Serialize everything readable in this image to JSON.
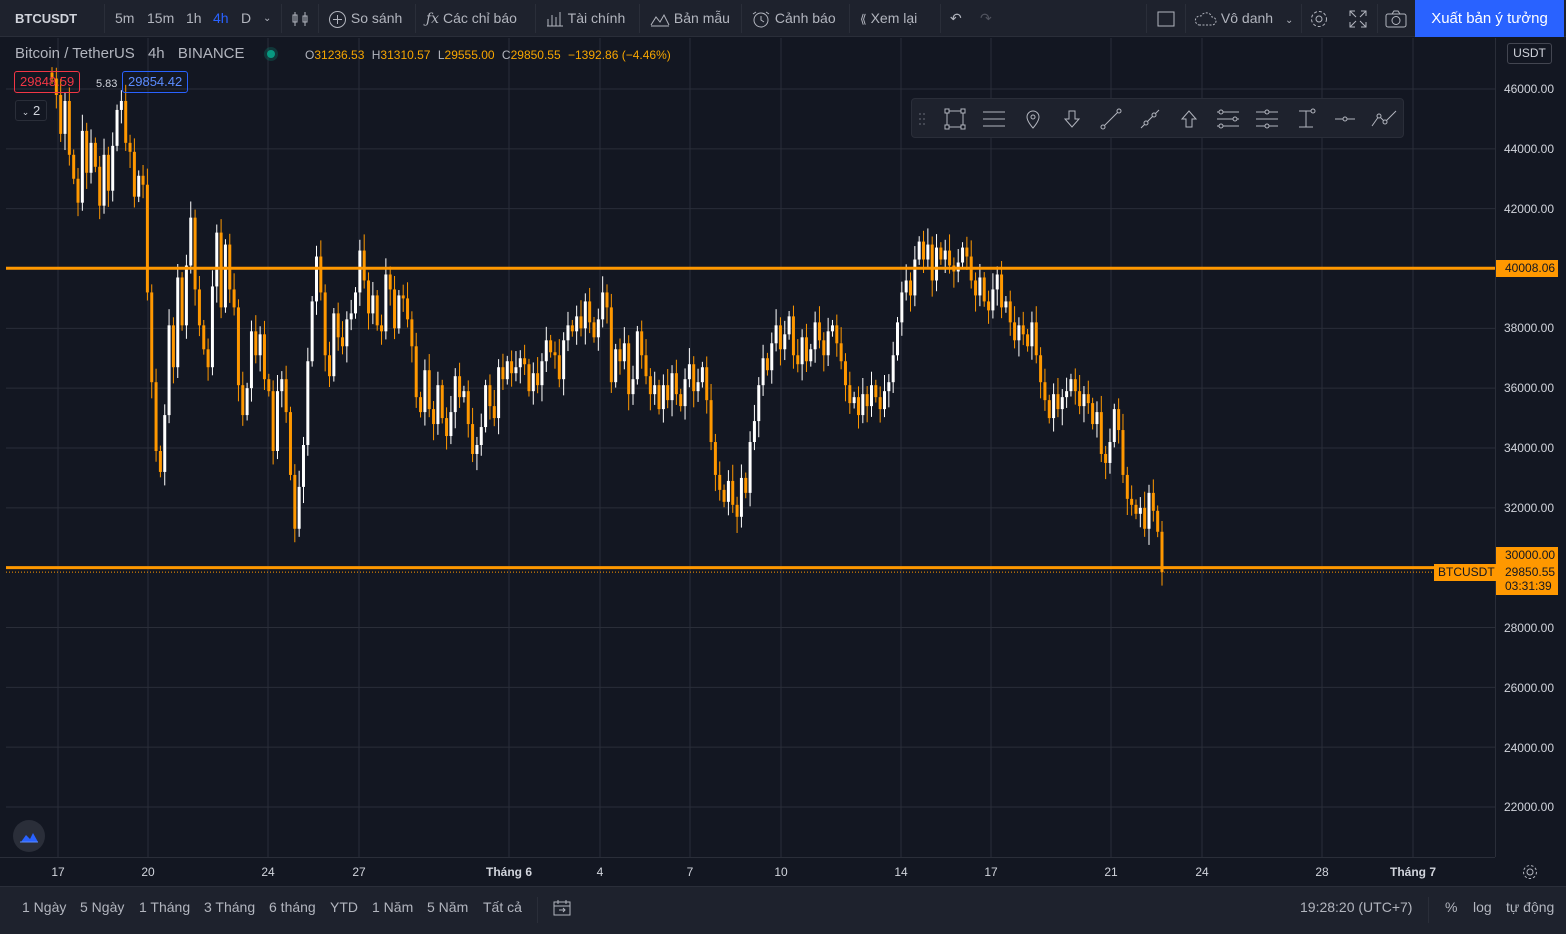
{
  "toolbar": {
    "symbol": "BTCUSDT",
    "intervals": [
      "5m",
      "15m",
      "1h",
      "4h",
      "D"
    ],
    "active_interval": "4h",
    "compare": "So sánh",
    "indicators": "Các chỉ báo",
    "financials": "Tài chính",
    "templates": "Bản mẫu",
    "alert": "Cảnh báo",
    "replay": "Xem lại",
    "layout_name": "Vô danh",
    "publish": "Xuất bản ý tưởng"
  },
  "legend": {
    "name": "Bitcoin / TetherUS",
    "interval": "4h",
    "exchange": "BINANCE",
    "o_label": "O",
    "o": "31236.53",
    "h_label": "H",
    "h": "31310.57",
    "l_label": "L",
    "l": "29555.00",
    "c_label": "C",
    "c": "29850.55",
    "change": "−1392.86 (−4.46%)",
    "sell_price": "29848.59",
    "spread": "5.83",
    "buy_price": "29854.42",
    "collapsed_count": "2"
  },
  "price_axis": {
    "currency": "USDT",
    "labels": [
      "46000.00",
      "44000.00",
      "42000.00",
      "38000.00",
      "36000.00",
      "34000.00",
      "32000.00",
      "28000.00",
      "26000.00",
      "24000.00",
      "22000.00"
    ],
    "resistance_tag": "40008.06",
    "support_tag": "30000.00",
    "current_price": "29850.55",
    "countdown": "03:31:39",
    "symbol_tag": "BTCUSDT"
  },
  "time_axis": {
    "labels": [
      "17",
      "20",
      "24",
      "27",
      "Tháng 6",
      "4",
      "7",
      "10",
      "14",
      "17",
      "21",
      "24",
      "28",
      "Tháng 7"
    ]
  },
  "bottom": {
    "ranges": [
      "1 Ngày",
      "5 Ngày",
      "1 Tháng",
      "3 Tháng",
      "6 tháng",
      "YTD",
      "1 Năm",
      "5 Năm",
      "Tất cả"
    ],
    "clock": "19:28:20 (UTC+7)",
    "percent": "%",
    "log": "log",
    "auto": "tự động"
  },
  "chart_data": {
    "type": "candlestick",
    "color": "#ff9800",
    "hover_color": "#ffffff",
    "y_range": [
      20500,
      47500
    ],
    "horizontal_lines": [
      40008.06,
      30000.0
    ],
    "closes": [
      46350,
      45800,
      44500,
      45600,
      43800,
      43000,
      42200,
      44600,
      43200,
      44200,
      43400,
      42100,
      43800,
      42600,
      44100,
      45300,
      45600,
      44200,
      43900,
      42400,
      43100,
      42800,
      39200,
      36200,
      33900,
      33200,
      35100,
      38100,
      36700,
      39700,
      38100,
      40100,
      41700,
      39300,
      38100,
      37300,
      36700,
      39400,
      41200,
      38700,
      40800,
      39300,
      38700,
      36100,
      35100,
      36000,
      37900,
      37100,
      37800,
      36300,
      35900,
      33900,
      35900,
      36300,
      35200,
      33100,
      31300,
      32700,
      34100,
      36900,
      38900,
      40400,
      39200,
      37100,
      36400,
      38500,
      37700,
      37400,
      38300,
      38500,
      39200,
      40600,
      39600,
      38500,
      39100,
      38100,
      37900,
      39800,
      39300,
      38000,
      39100,
      39000,
      38300,
      37400,
      35700,
      35200,
      36600,
      35300,
      34800,
      36100,
      35000,
      34400,
      35200,
      36400,
      35700,
      35900,
      34800,
      33800,
      34100,
      34700,
      36100,
      35400,
      35000,
      36700,
      36300,
      36900,
      36500,
      36700,
      37000,
      36800,
      35900,
      36500,
      36100,
      36900,
      37600,
      37200,
      37100,
      36300,
      37600,
      38100,
      37900,
      38400,
      38000,
      38900,
      38200,
      37700,
      38300,
      39200,
      38700,
      36200,
      37300,
      36900,
      37500,
      35800,
      36300,
      37900,
      37100,
      36400,
      35800,
      36100,
      35300,
      36100,
      35600,
      36500,
      35800,
      35400,
      36300,
      36800,
      35900,
      36200,
      36700,
      35600,
      34200,
      33100,
      32600,
      32200,
      32900,
      32100,
      31700,
      33000,
      32500,
      34200,
      34900,
      36100,
      37000,
      36600,
      37500,
      38100,
      37300,
      37800,
      38400,
      37100,
      36800,
      37700,
      36900,
      37300,
      38200,
      37600,
      37100,
      37900,
      38100,
      37500,
      36900,
      36100,
      35500,
      35700,
      35100,
      35800,
      35400,
      36100,
      35700,
      35300,
      35900,
      36200,
      37100,
      38200,
      39200,
      39600,
      39100,
      40300,
      40900,
      40300,
      40800,
      39600,
      40700,
      40300,
      40600,
      40100,
      39900,
      40200,
      40700,
      40400,
      39600,
      39100,
      39700,
      38900,
      38600,
      39300,
      39800,
      38700,
      38900,
      38200,
      37600,
      38100,
      37800,
      37400,
      38200,
      37100,
      36200,
      35600,
      35000,
      35800,
      35300,
      35700,
      35900,
      36300,
      35900,
      35400,
      35800,
      35500,
      34800,
      35200,
      33800,
      33500,
      34200,
      35300,
      34600,
      33100,
      32300,
      32100,
      31800,
      32000,
      31300,
      32500,
      31900,
      31200,
      29850
    ]
  }
}
